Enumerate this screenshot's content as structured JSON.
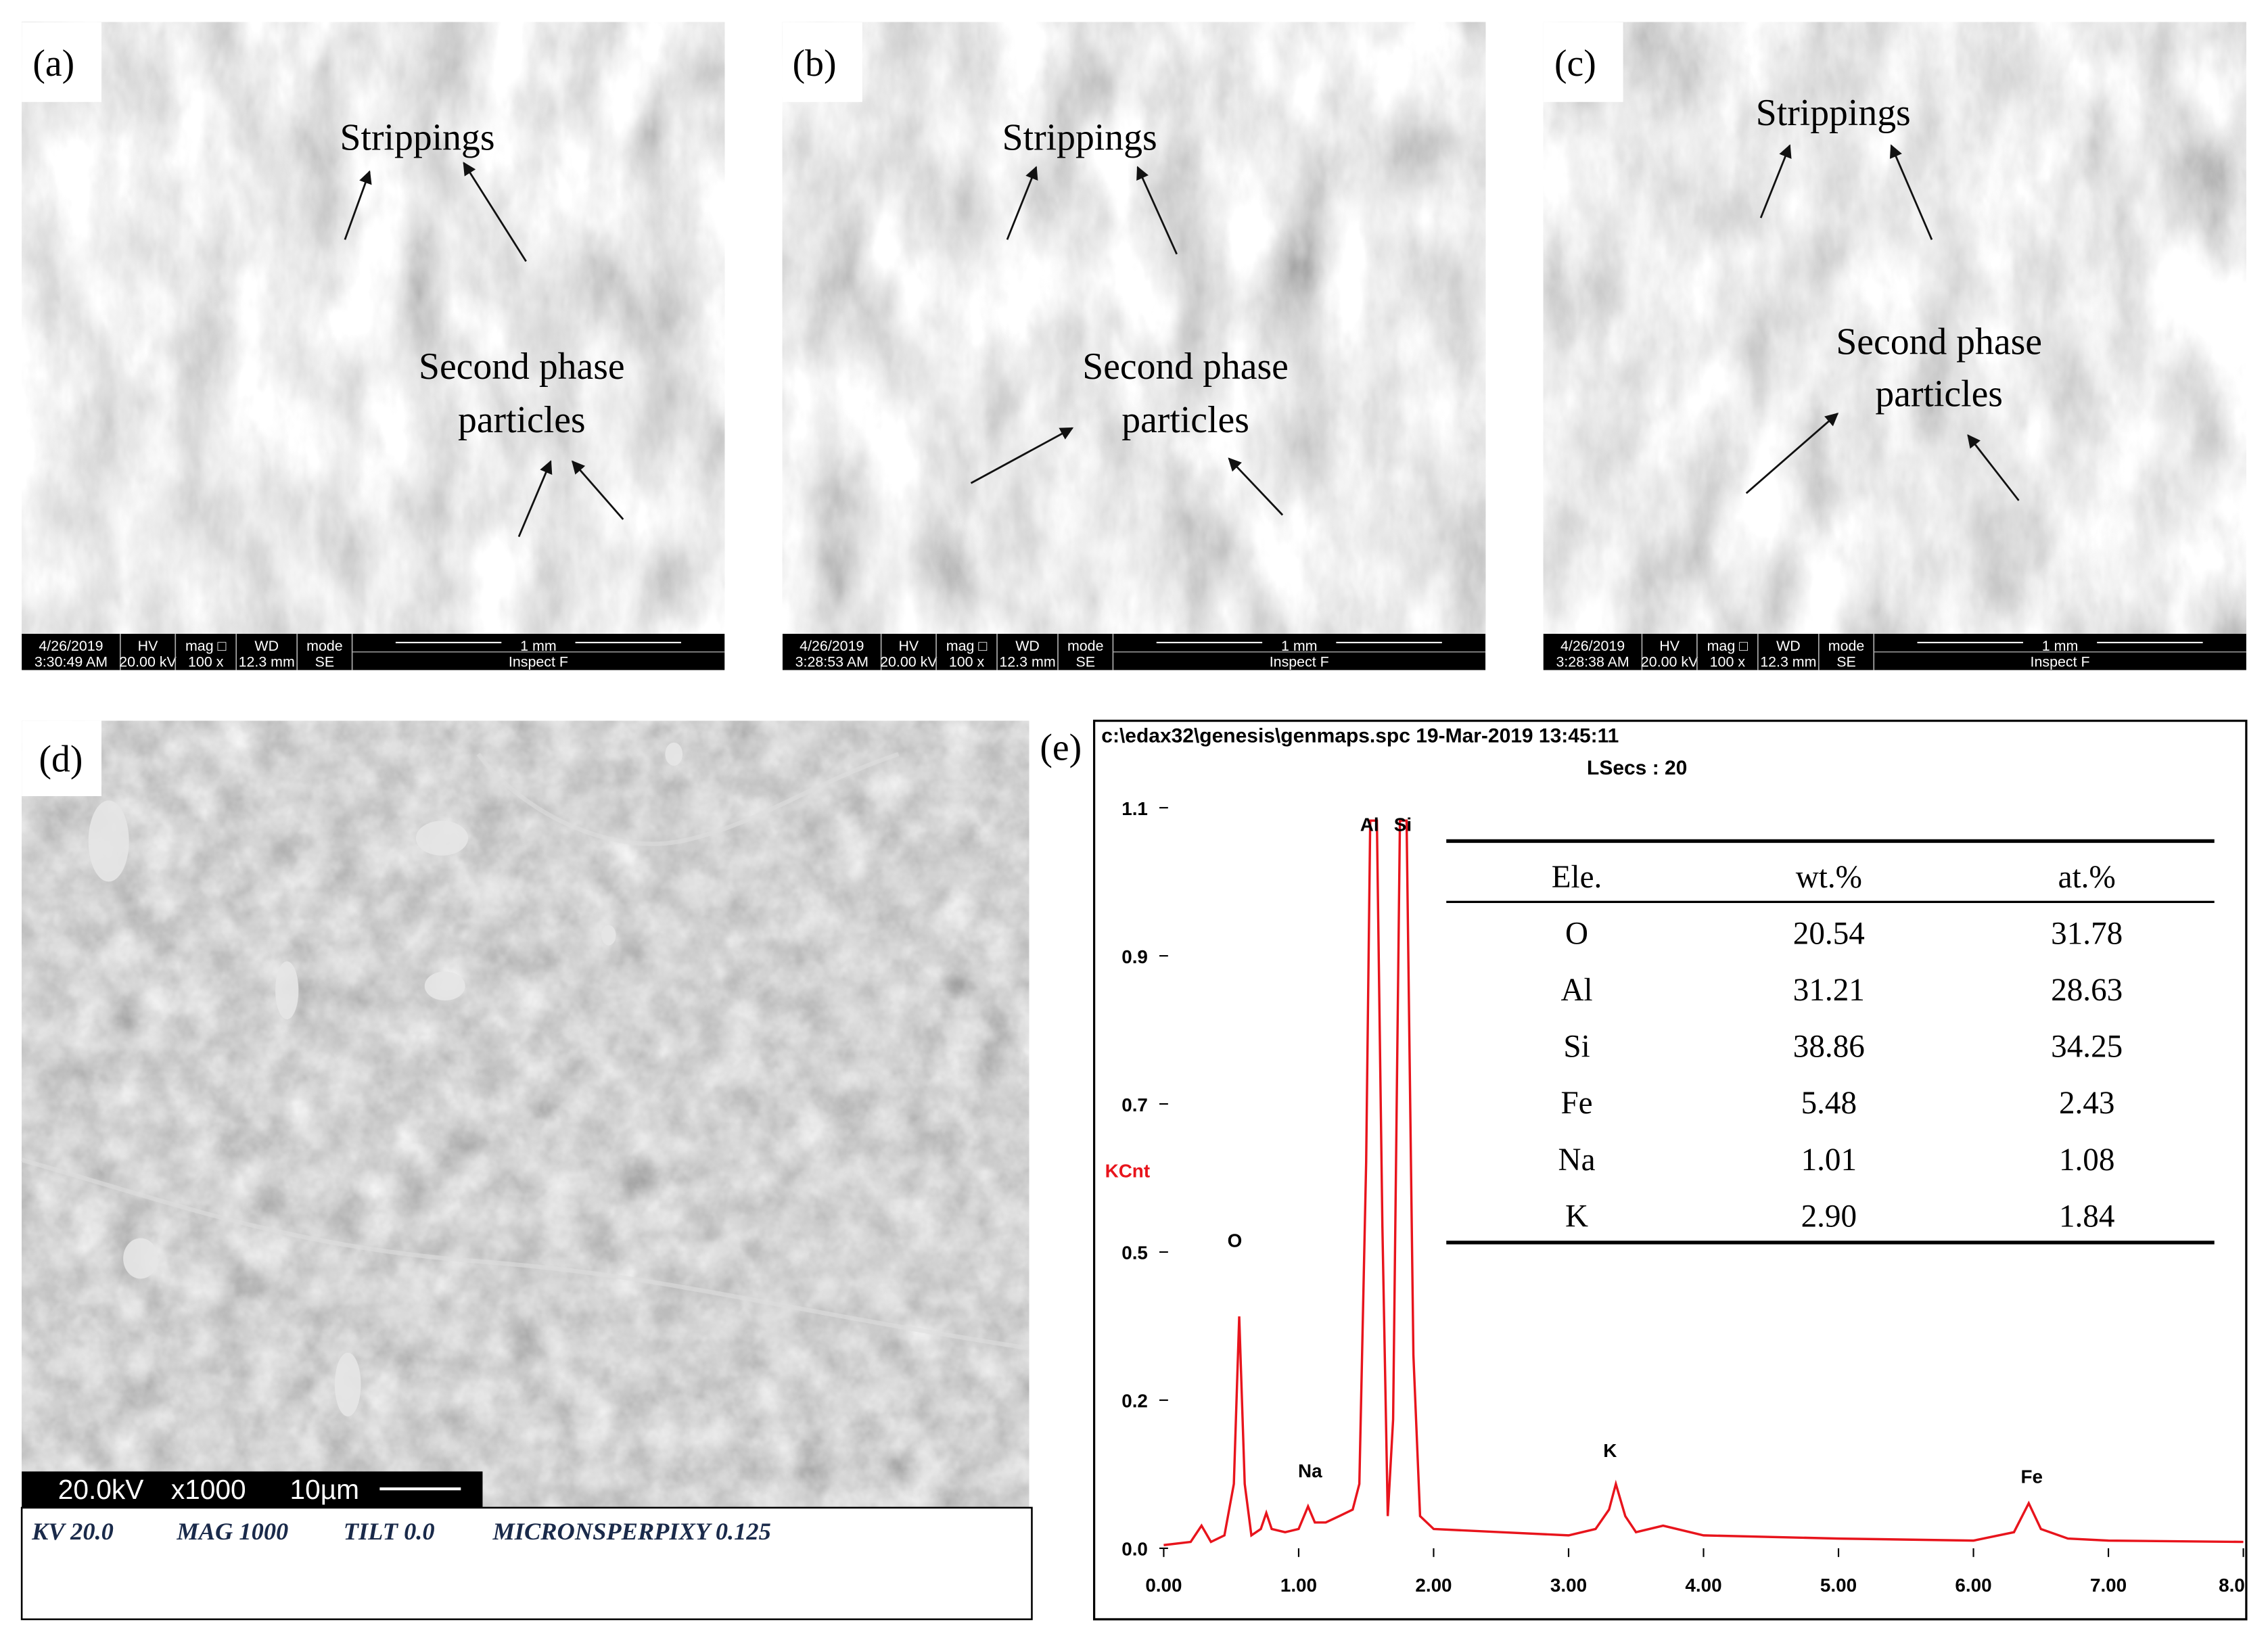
{
  "panels": [
    {
      "label": "(a)",
      "annotations": [
        "Strippings",
        "Second phase",
        "particles"
      ],
      "info": {
        "top": [
          "4/26/2019",
          "HV",
          "mag □",
          "WD",
          "mode",
          "1 mm"
        ],
        "bottom": [
          "3:30:49 AM",
          "20.00 kV",
          "100 x",
          "12.3 mm",
          "SE",
          "Inspect F"
        ]
      }
    },
    {
      "label": "(b)",
      "annotations": [
        "Strippings",
        "Second phase",
        "particles"
      ],
      "info": {
        "top": [
          "4/26/2019",
          "HV",
          "mag □",
          "WD",
          "mode",
          "1 mm"
        ],
        "bottom": [
          "3:28:53 AM",
          "20.00 kV",
          "100 x",
          "12.3 mm",
          "SE",
          "Inspect F"
        ]
      }
    },
    {
      "label": "(c)",
      "annotations": [
        "Strippings",
        "Second phase",
        "particles"
      ],
      "info": {
        "top": [
          "4/26/2019",
          "HV",
          "mag □",
          "WD",
          "mode",
          "1 mm"
        ],
        "bottom": [
          "3:28:38 AM",
          "20.00 kV",
          "100 x",
          "12.3 mm",
          "SE",
          "Inspect F"
        ]
      }
    }
  ],
  "panel_d": {
    "label": "(d)",
    "scale_bar": [
      "20.0kV",
      "x1000",
      "10µm"
    ],
    "caption": [
      "KV 20.0",
      "MAG 1000",
      "TILT 0.0",
      "MICRONSPERPIXY 0.125"
    ]
  },
  "panel_e": {
    "label": "(e)",
    "file": "c:\\edax32\\genesis\\genmaps.spc  19-Mar-2019 13:45:11",
    "lsecs": "LSecs : 20",
    "y_label": "KCnt",
    "peaks": [
      "O",
      "Na",
      "Al",
      "Si",
      "K",
      "Fe"
    ],
    "spectrum": {
      "color": "#e8141c",
      "xlim": [
        0,
        8.0
      ],
      "ylim": [
        0,
        1.15
      ],
      "xticks": [
        {
          "value": 0,
          "label": "0.00"
        },
        {
          "value": 1,
          "label": "1.00"
        },
        {
          "value": 2,
          "label": "2.00"
        },
        {
          "value": 3,
          "label": "3.00"
        },
        {
          "value": 4,
          "label": "4.00"
        },
        {
          "value": 5,
          "label": "5.00"
        },
        {
          "value": 6,
          "label": "6.00"
        },
        {
          "value": 7,
          "label": "7.00"
        },
        {
          "value": 8,
          "label": "8.0"
        }
      ],
      "yticks": [
        {
          "value": 0,
          "label": "0.0"
        },
        {
          "value": 0.23,
          "label": "0.2"
        },
        {
          "value": 0.46,
          "label": "0.5"
        },
        {
          "value": 0.69,
          "label": "0.7"
        },
        {
          "value": 0.92,
          "label": "0.9"
        },
        {
          "value": 1.15,
          "label": "1.1"
        }
      ],
      "x": [
        0.0,
        0.2,
        0.28,
        0.35,
        0.45,
        0.52,
        0.56,
        0.6,
        0.65,
        0.72,
        0.76,
        0.8,
        0.9,
        1.0,
        1.07,
        1.12,
        1.2,
        1.3,
        1.4,
        1.45,
        1.5,
        1.53,
        1.58,
        1.62,
        1.66,
        1.7,
        1.75,
        1.8,
        1.85,
        1.9,
        2.0,
        2.5,
        3.0,
        3.2,
        3.3,
        3.35,
        3.42,
        3.5,
        3.7,
        4.0,
        5.0,
        6.0,
        6.3,
        6.41,
        6.5,
        6.7,
        7.0,
        8.0
      ],
      "y": [
        0.005,
        0.01,
        0.035,
        0.01,
        0.02,
        0.1,
        0.36,
        0.1,
        0.02,
        0.03,
        0.055,
        0.03,
        0.025,
        0.03,
        0.065,
        0.04,
        0.04,
        0.05,
        0.06,
        0.1,
        0.6,
        1.13,
        1.13,
        0.5,
        0.05,
        0.2,
        1.13,
        1.13,
        0.3,
        0.05,
        0.03,
        0.025,
        0.02,
        0.03,
        0.06,
        0.1,
        0.05,
        0.025,
        0.035,
        0.02,
        0.015,
        0.012,
        0.025,
        0.07,
        0.03,
        0.015,
        0.012,
        0.01
      ]
    },
    "table": {
      "header": [
        "Ele.",
        "wt.%",
        "at.%"
      ],
      "rows": [
        [
          "O",
          "20.54",
          "31.78"
        ],
        [
          "Al",
          "31.21",
          "28.63"
        ],
        [
          "Si",
          "38.86",
          "34.25"
        ],
        [
          "Fe",
          "5.48",
          "2.43"
        ],
        [
          "Na",
          "1.01",
          "1.08"
        ],
        [
          "K",
          "2.90",
          "1.84"
        ]
      ]
    }
  }
}
